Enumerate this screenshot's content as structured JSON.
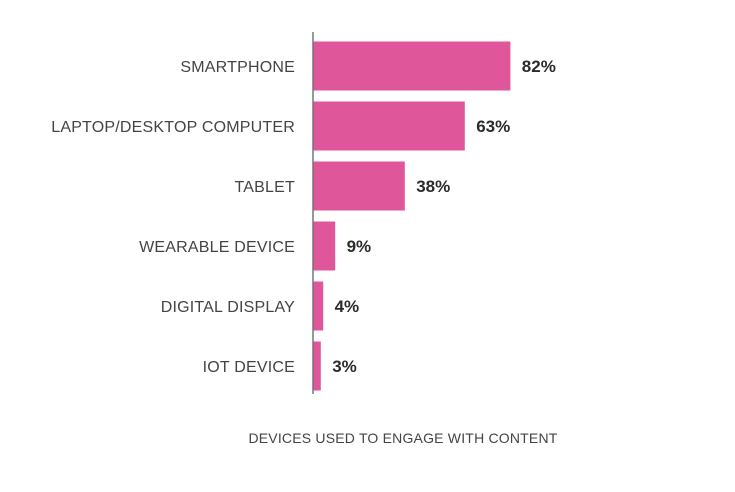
{
  "chart_data": {
    "type": "bar",
    "orientation": "horizontal",
    "categories": [
      "SMARTPHONE",
      "LAPTOP/DESKTOP COMPUTER",
      "TABLET",
      "WEARABLE DEVICE",
      "DIGITAL DISPLAY",
      "IOT DEVICE"
    ],
    "values": [
      82,
      63,
      38,
      9,
      4,
      3
    ],
    "value_labels": [
      "82%",
      "63%",
      "38%",
      "9%",
      "4%",
      "3%"
    ],
    "title": "",
    "xlabel": "DEVICES USED TO ENGAGE WITH CONTENT",
    "ylabel": "",
    "xlim": [
      0,
      100
    ],
    "grid": false,
    "legend": "none",
    "colors": {
      "bar": "#e0569b",
      "axis": "#555555",
      "category_text": "#444444",
      "value_text": "#2b2b2b"
    }
  }
}
